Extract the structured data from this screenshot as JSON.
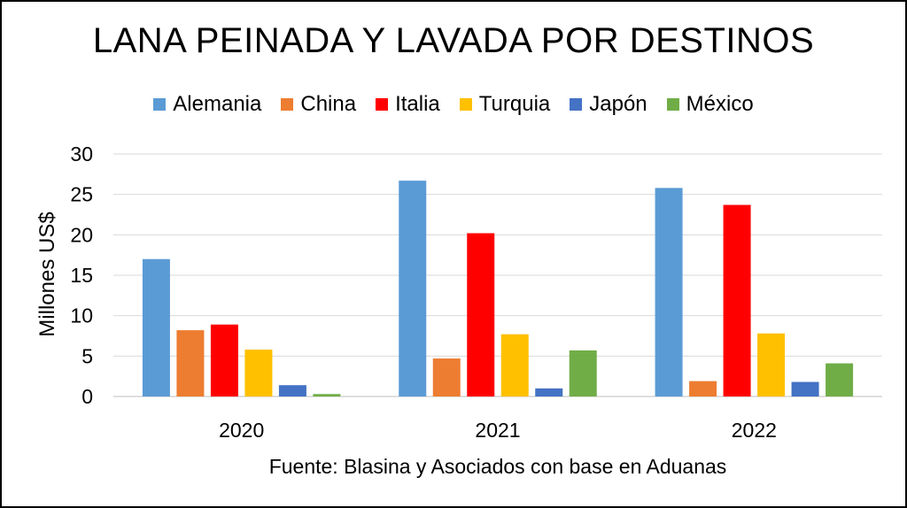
{
  "chart_data": {
    "type": "bar",
    "title": "LANA PEINADA Y LAVADA POR DESTINOS",
    "ylabel": "Millones US$",
    "xlabel": "",
    "categories": [
      "2020",
      "2021",
      "2022"
    ],
    "ylim": [
      0,
      30
    ],
    "yticks": [
      0,
      5,
      10,
      15,
      20,
      25,
      30
    ],
    "grid": true,
    "legend_position": "top-center",
    "series": [
      {
        "name": "Alemania",
        "color": "#5b9bd5",
        "values": [
          17.0,
          26.7,
          25.8
        ]
      },
      {
        "name": "China",
        "color": "#ed7d31",
        "values": [
          8.2,
          4.7,
          1.9
        ]
      },
      {
        "name": "Italia",
        "color": "#ff0000",
        "values": [
          8.9,
          20.2,
          23.7
        ]
      },
      {
        "name": "Turquia",
        "color": "#ffc000",
        "values": [
          5.8,
          7.7,
          7.8
        ]
      },
      {
        "name": "Japón",
        "color": "#4472c4",
        "values": [
          1.4,
          1.0,
          1.8
        ]
      },
      {
        "name": "México",
        "color": "#70ad47",
        "values": [
          0.3,
          5.7,
          4.1
        ]
      }
    ],
    "source": "Fuente: Blasina y Asociados con base en Aduanas"
  }
}
